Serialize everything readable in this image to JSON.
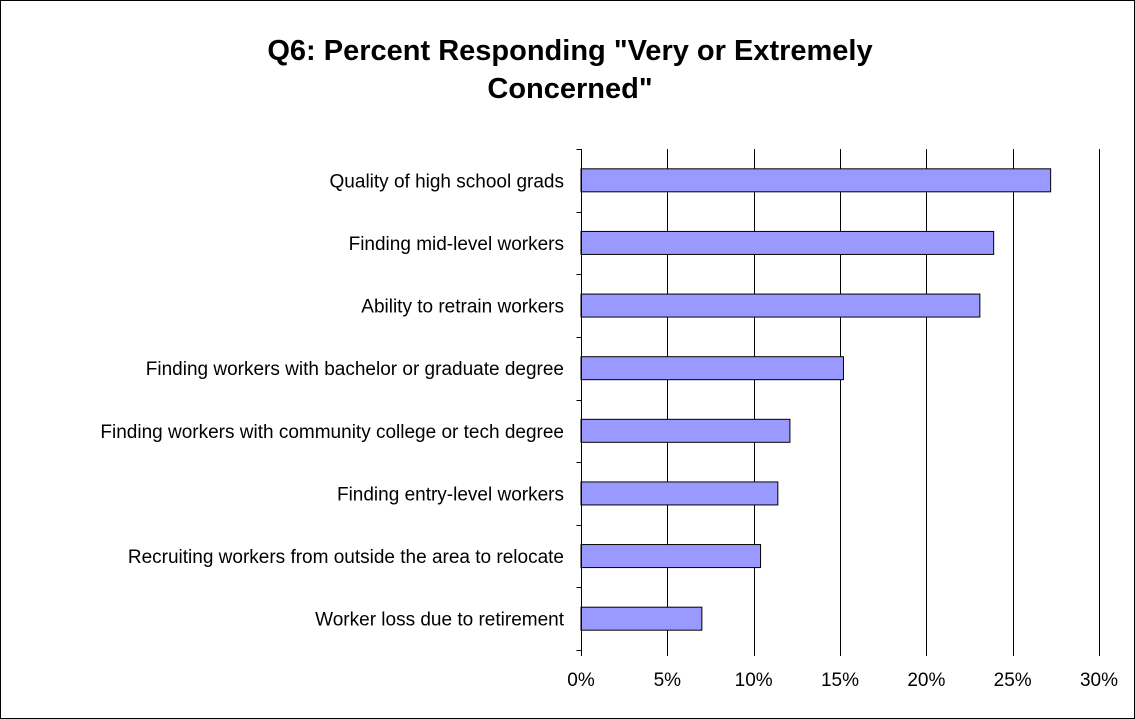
{
  "chart_data": {
    "type": "bar",
    "orientation": "horizontal",
    "title_lines": [
      "Q6: Percent Responding \"Very or Extremely",
      "Concerned\""
    ],
    "categories": [
      "Quality of high school grads",
      "Finding mid-level workers",
      "Ability to retrain workers",
      "Finding workers with bachelor or graduate degree",
      "Finding workers with community college or tech degree",
      "Finding entry-level workers",
      "Recruiting workers from outside the area to relocate",
      "Worker loss due to retirement"
    ],
    "values": [
      27.2,
      23.9,
      23.1,
      15.2,
      12.1,
      11.4,
      10.4,
      7.0
    ],
    "xlim": [
      0,
      30
    ],
    "xticks": [
      0,
      5,
      10,
      15,
      20,
      25,
      30
    ],
    "xtick_labels": [
      "0%",
      "5%",
      "10%",
      "15%",
      "20%",
      "25%",
      "30%"
    ],
    "grid": "vertical",
    "legend": "none",
    "bar_color": "#9999ff",
    "bar_edge_color": "#000000"
  }
}
